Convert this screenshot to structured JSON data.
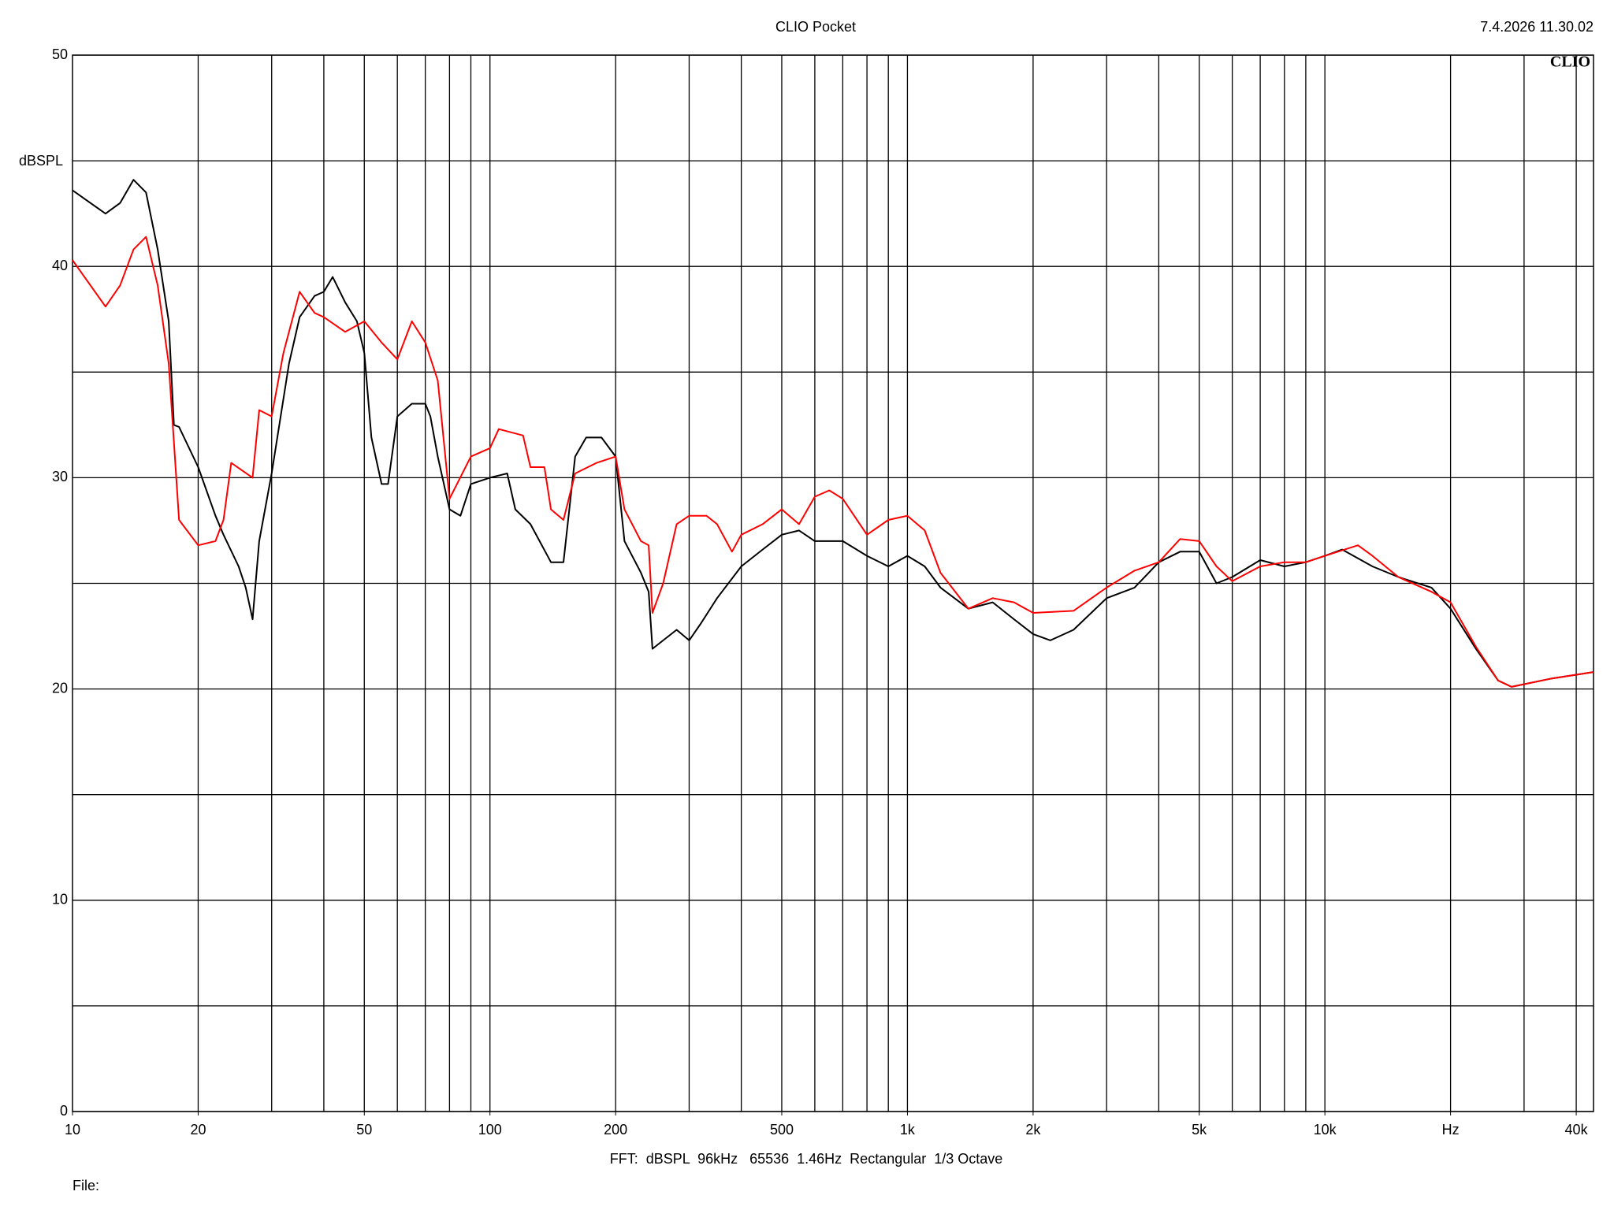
{
  "chart_data": {
    "type": "line",
    "title": "CLIO Pocket",
    "timestamp": "7.4.2026 11.30.02",
    "logo": "CLIO",
    "y_label": "dBSPL",
    "footer": "FFT:  dBSPL  96kHz   65536  1.46Hz  Rectangular  1/3 Octave",
    "file_label": "File:",
    "x_log": true,
    "grid": true,
    "xlim": [
      10,
      44000
    ],
    "ylim": [
      0,
      50
    ],
    "yticks": [
      0,
      10,
      20,
      30,
      40,
      50
    ],
    "yminor": [
      5,
      15,
      25,
      35,
      45
    ],
    "xticks": [
      10,
      20,
      50,
      100,
      200,
      500,
      {
        "value": 1000,
        "label": "1k"
      },
      {
        "value": 2000,
        "label": "2k"
      },
      {
        "value": 5000,
        "label": "5k"
      },
      {
        "value": 10000,
        "label": "10k"
      },
      {
        "value": 20000,
        "label": "Hz"
      },
      {
        "value": 40000,
        "label": "40k"
      }
    ],
    "xgrid": [
      20,
      30,
      40,
      50,
      60,
      70,
      80,
      90,
      100,
      200,
      300,
      400,
      500,
      600,
      700,
      800,
      900,
      1000,
      2000,
      3000,
      4000,
      5000,
      6000,
      7000,
      8000,
      9000,
      10000,
      20000,
      30000,
      40000
    ],
    "series": [
      {
        "color": "#000000",
        "x": [
          10,
          12,
          13,
          14,
          15,
          16,
          17,
          17.5,
          18,
          20,
          22,
          23,
          25,
          26,
          27,
          28,
          30,
          33,
          35,
          38,
          40,
          42,
          45,
          48,
          50,
          52,
          55,
          57,
          60,
          65,
          70,
          72,
          75,
          80,
          85,
          90,
          100,
          110,
          115,
          125,
          140,
          150,
          160,
          170,
          185,
          200,
          210,
          230,
          240,
          245,
          260,
          280,
          300,
          320,
          350,
          400,
          450,
          500,
          550,
          600,
          700,
          800,
          900,
          1000,
          1100,
          1200,
          1400,
          1600,
          1800,
          2000,
          2200,
          2500,
          3000,
          3500,
          4000,
          4500,
          5000,
          5500,
          6000,
          7000,
          8000,
          9000,
          10000,
          11000,
          13000,
          15000,
          18000,
          20000,
          23000,
          26000,
          28000,
          35000,
          44000
        ],
        "values": [
          43.6,
          42.5,
          43.0,
          44.1,
          43.5,
          40.8,
          37.4,
          32.5,
          32.4,
          30.5,
          28.2,
          27.3,
          25.8,
          24.8,
          23.3,
          27.0,
          30.2,
          35.4,
          37.6,
          38.6,
          38.8,
          39.5,
          38.3,
          37.4,
          35.9,
          31.9,
          29.7,
          29.7,
          32.9,
          33.5,
          33.5,
          32.9,
          31.0,
          28.5,
          28.2,
          29.7,
          30.0,
          30.2,
          28.5,
          27.8,
          26.0,
          26.0,
          31.0,
          31.9,
          31.9,
          31.0,
          27.0,
          25.5,
          24.6,
          21.9,
          22.3,
          22.8,
          22.3,
          23.1,
          24.3,
          25.8,
          26.6,
          27.3,
          27.5,
          27.0,
          27.0,
          26.3,
          25.8,
          26.3,
          25.8,
          24.8,
          23.8,
          24.1,
          23.3,
          22.6,
          22.3,
          22.8,
          24.3,
          24.8,
          26.0,
          26.5,
          26.5,
          25.0,
          25.3,
          26.1,
          25.8,
          26.0,
          26.3,
          26.6,
          25.8,
          25.3,
          24.8,
          23.8,
          21.9,
          20.4,
          20.1,
          20.5,
          20.8
        ]
      },
      {
        "color": "#ff0000",
        "x": [
          10,
          12,
          13,
          14,
          15,
          16,
          17,
          18,
          20,
          22,
          23,
          24,
          27,
          28,
          30,
          32,
          35,
          38,
          40,
          45,
          50,
          55,
          60,
          65,
          70,
          75,
          80,
          90,
          100,
          105,
          120,
          125,
          135,
          140,
          150,
          160,
          180,
          200,
          210,
          230,
          240,
          245,
          260,
          280,
          300,
          330,
          350,
          380,
          400,
          450,
          500,
          550,
          600,
          650,
          700,
          800,
          900,
          1000,
          1100,
          1200,
          1400,
          1600,
          1800,
          2000,
          2500,
          3000,
          3500,
          4000,
          4500,
          5000,
          5500,
          6000,
          7000,
          8000,
          9000,
          10000,
          12000,
          13000,
          15000,
          18000,
          20000,
          23000,
          26000,
          28000,
          35000,
          44000
        ],
        "values": [
          40.3,
          38.1,
          39.1,
          40.8,
          41.4,
          39.1,
          35.4,
          28.0,
          26.8,
          27.0,
          28.0,
          30.7,
          30.0,
          33.2,
          32.9,
          35.9,
          38.8,
          37.8,
          37.6,
          36.9,
          37.4,
          36.4,
          35.6,
          37.4,
          36.4,
          34.6,
          29.0,
          31.0,
          31.4,
          32.3,
          32.0,
          30.5,
          30.5,
          28.5,
          28.0,
          30.2,
          30.7,
          31.0,
          28.5,
          27.0,
          26.8,
          23.6,
          25.0,
          27.8,
          28.2,
          28.2,
          27.8,
          26.5,
          27.3,
          27.8,
          28.5,
          27.8,
          29.1,
          29.4,
          29.0,
          27.3,
          28.0,
          28.2,
          27.5,
          25.5,
          23.8,
          24.3,
          24.1,
          23.6,
          23.7,
          24.8,
          25.6,
          26.0,
          27.1,
          27.0,
          25.8,
          25.1,
          25.8,
          26.0,
          26.0,
          26.3,
          26.8,
          26.3,
          25.3,
          24.6,
          24.1,
          22.0,
          20.4,
          20.1,
          20.5,
          20.8
        ]
      }
    ]
  }
}
